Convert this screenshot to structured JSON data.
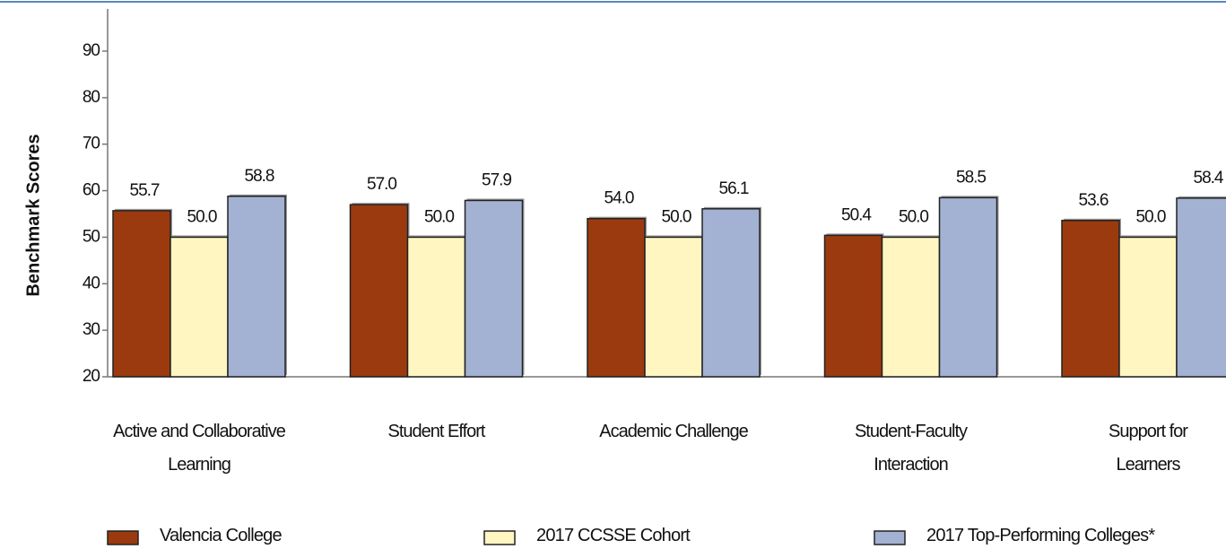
{
  "chart_data": {
    "type": "bar",
    "y_label": "Benchmark Scores",
    "categories": [
      "Active and Collaborative\nLearning",
      "Student Effort",
      "Academic Challenge",
      "Student-Faculty\nInteraction",
      "Support for\nLearners"
    ],
    "series": [
      {
        "name": "Valencia College",
        "color": "#9c3a0f",
        "values": [
          55.7,
          57,
          54,
          50.4,
          53.6
        ],
        "value_labels": [
          "55.7",
          "57.0",
          "54.0",
          "50.4",
          "53.6"
        ]
      },
      {
        "name": "2017 CCSSE Cohort",
        "color": "#fff6c2",
        "values": [
          50,
          50,
          50,
          50,
          50
        ],
        "value_labels": [
          "50.0",
          "50.0",
          "50.0",
          "50.0",
          "50.0"
        ]
      },
      {
        "name": "2017 Top-Performing Colleges*",
        "color": "#a3b1d2",
        "values": [
          58.8,
          57.9,
          56.1,
          58.5,
          58.4
        ],
        "value_labels": [
          "58.8",
          "57.9",
          "56.1",
          "58.5",
          "58.4"
        ]
      }
    ],
    "ylim": [
      20,
      90
    ],
    "yticks": [
      20,
      30,
      40,
      50,
      60,
      70,
      80,
      90
    ]
  }
}
